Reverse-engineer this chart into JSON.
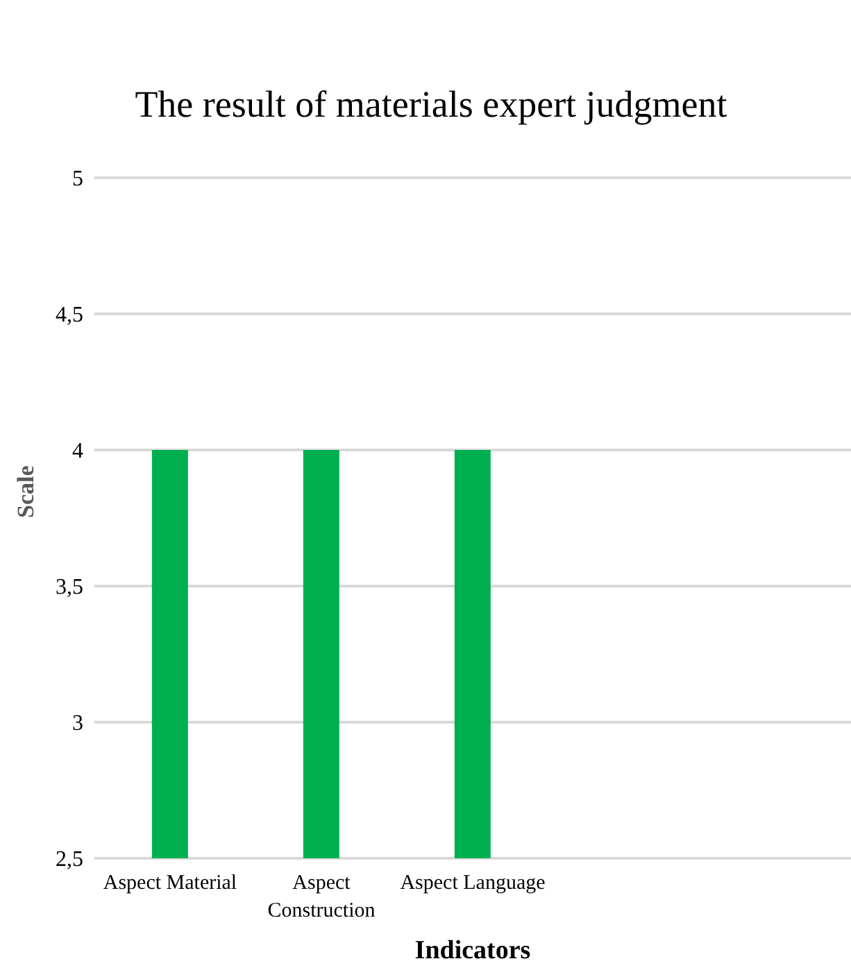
{
  "chart_data": {
    "type": "bar",
    "title": "The result of materials expert judgment",
    "xlabel": "Indicators",
    "ylabel": "Scale",
    "categories": [
      "Aspect Material",
      "Aspect Construction",
      "Aspect Language",
      null,
      null
    ],
    "values": [
      4,
      4,
      4,
      null,
      null
    ],
    "color": "#00b050",
    "ylim": [
      2.5,
      5
    ],
    "yticks": [
      {
        "value": 2.5,
        "label": "2,5"
      },
      3,
      {
        "value": 3.5,
        "label": "3,5"
      },
      4,
      {
        "value": 4.5,
        "label": "4,5"
      },
      5
    ],
    "grid": "y"
  }
}
